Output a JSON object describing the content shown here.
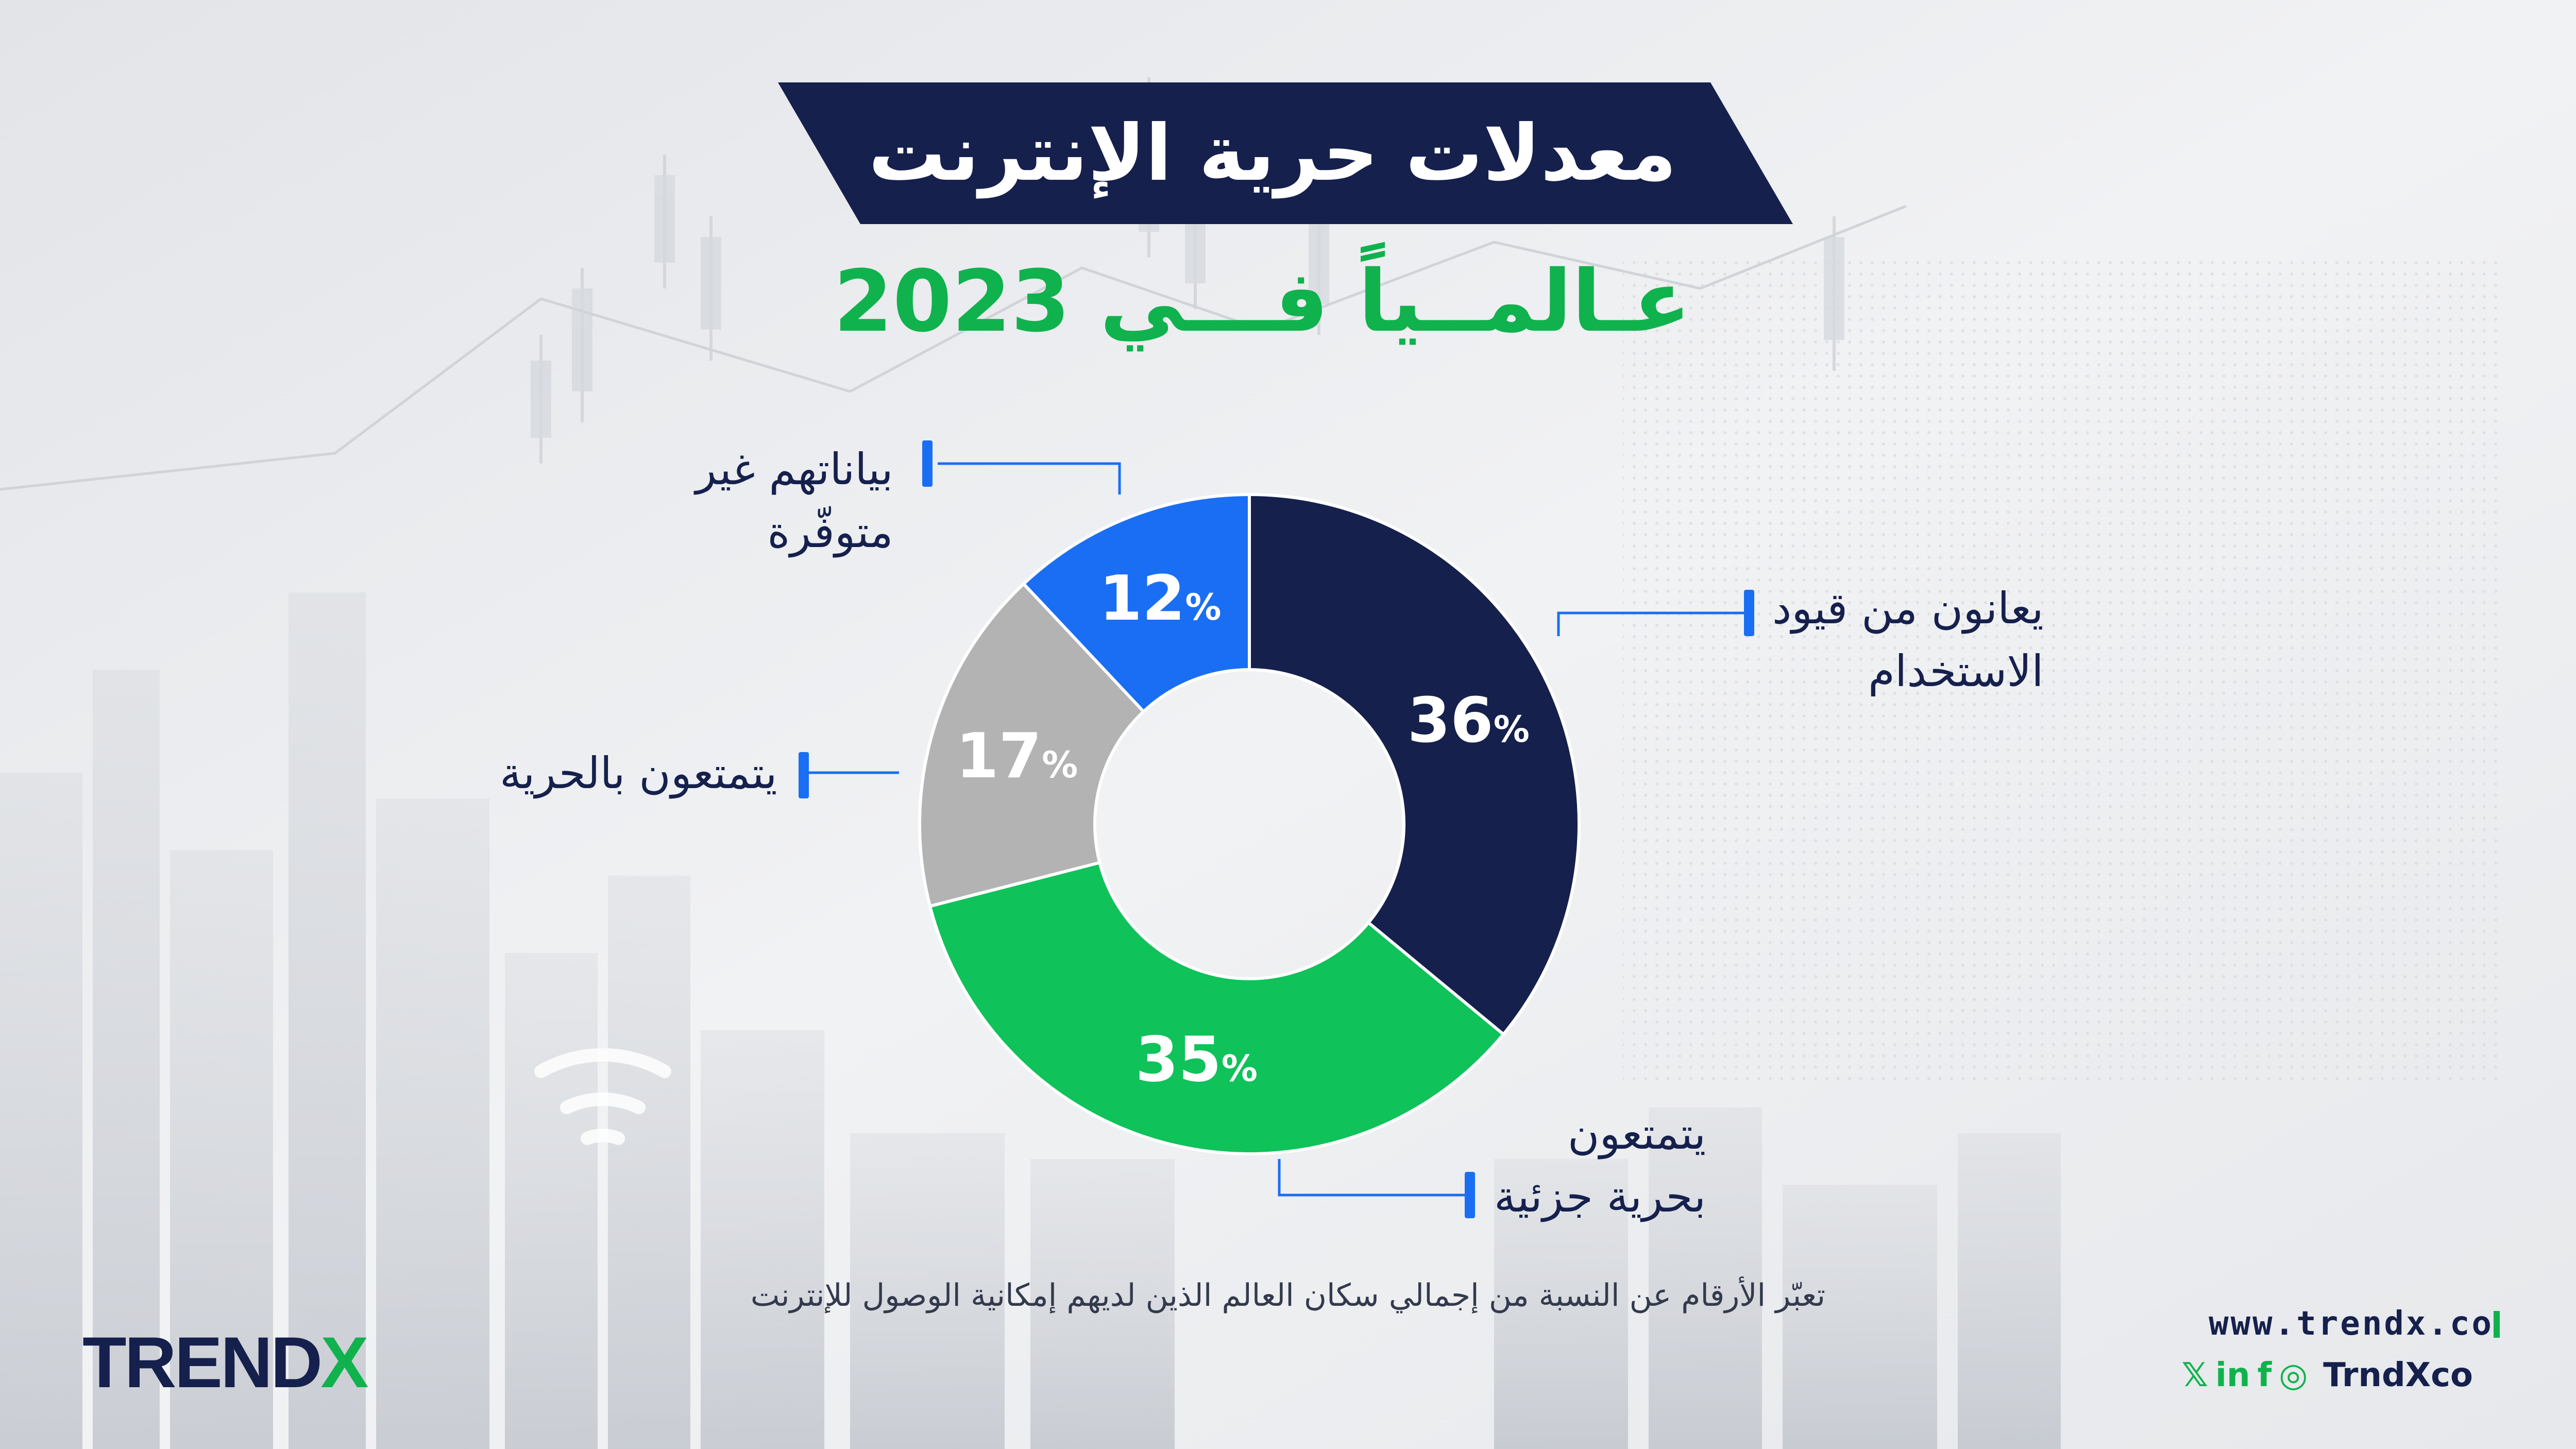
{
  "header": {
    "title": "معدلات حرية الإنترنت",
    "subtitle": "عـالمــياً فـــي 2023"
  },
  "colors": {
    "navy": "#15204d",
    "green": "#0fc25a",
    "gray": "#b3b3b3",
    "blue": "#1a6ef3",
    "title_banner": "#15204d",
    "subtitle_text": "#0fb24d"
  },
  "chart_data": {
    "type": "pie",
    "title": "معدلات حرية الإنترنت",
    "subtitle": "عـالمــياً فـــي 2023",
    "slices": [
      {
        "label": "يعانون من قيود الاستخدام",
        "label_lines": [
          "يعانون من قيود",
          "الاستخدام"
        ],
        "value": 36,
        "color": "#15204d"
      },
      {
        "label": "يتمتعون بحرية جزئية",
        "label_lines": [
          "يتمتعون",
          "بحرية جزئية"
        ],
        "value": 35,
        "color": "#0fc25a"
      },
      {
        "label": "يتمتعون بالحرية",
        "label_lines": [
          "يتمتعون بالحرية"
        ],
        "value": 17,
        "color": "#b3b3b3"
      },
      {
        "label": "بياناتهم غير متوفّرة",
        "label_lines": [
          "بياناتهم غير",
          "متوفّرة"
        ],
        "value": 12,
        "color": "#1a6ef3"
      }
    ],
    "value_suffix": "%",
    "note": "تعبّر الأرقام عن النسبة من إجمالي سكان العالم الذين لديهم إمكانية الوصول للإنترنت"
  },
  "footer": {
    "logo_main": "TREND",
    "logo_accent": "X",
    "website": "www.trendx.co",
    "social_icons": [
      "x-icon",
      "linkedin-icon",
      "facebook-icon",
      "instagram-icon"
    ],
    "social_glyphs": [
      "𝕏",
      "in",
      "f",
      "◎"
    ],
    "handle": "TrndXco"
  }
}
